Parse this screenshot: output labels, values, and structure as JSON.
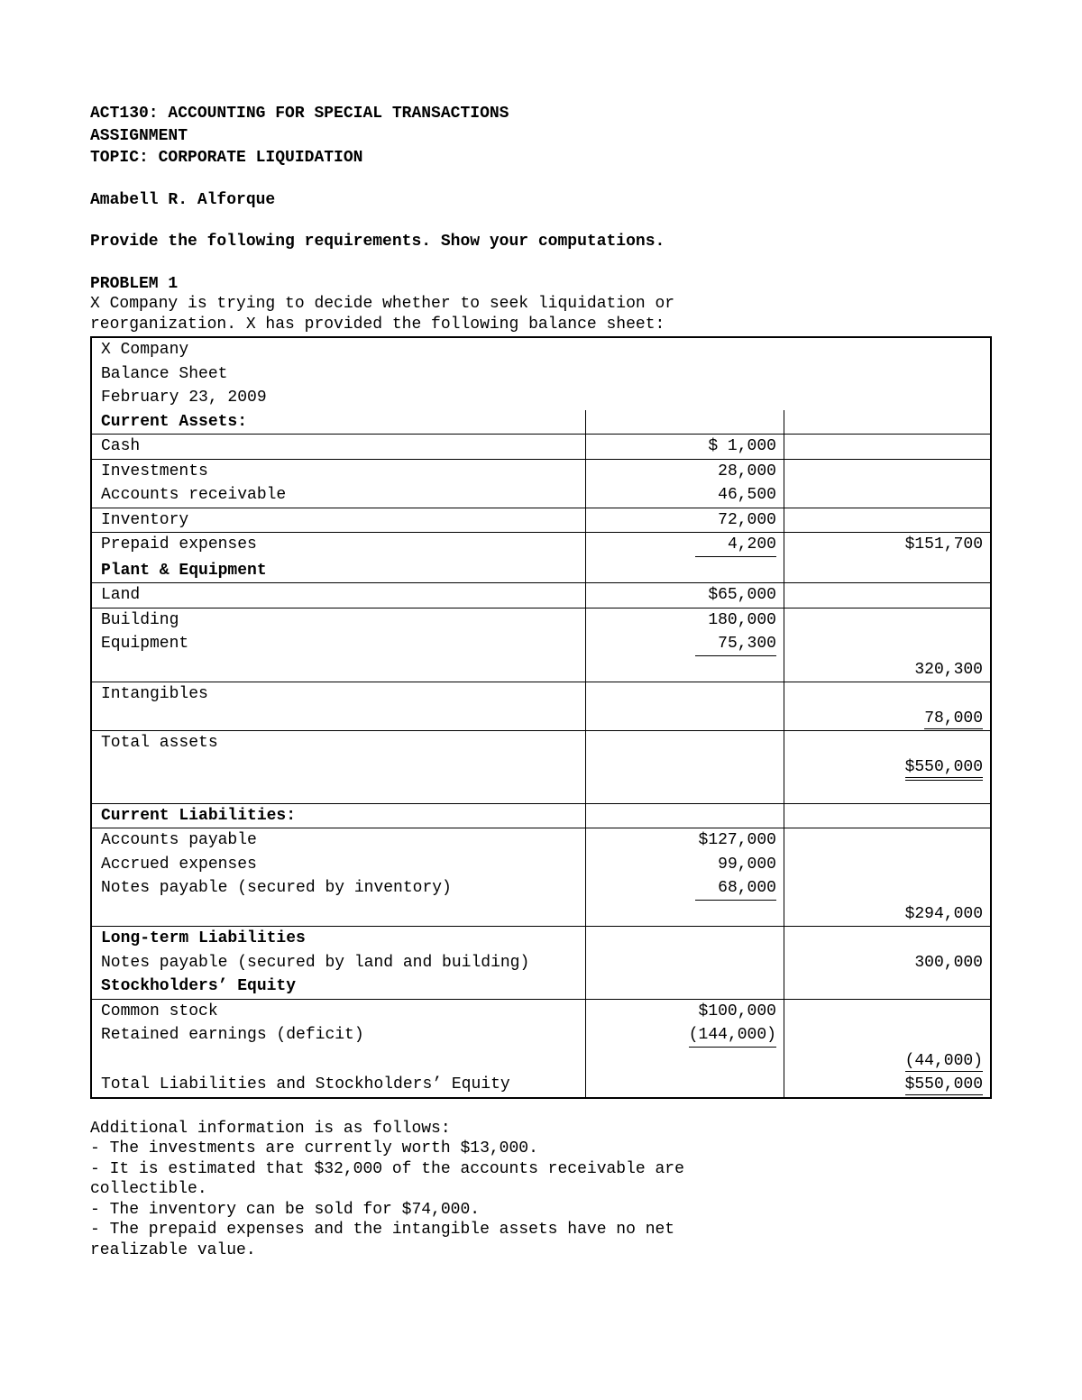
{
  "header": {
    "course": "ACT130: ACCOUNTING FOR SPECIAL TRANSACTIONS",
    "assignment": "ASSIGNMENT",
    "topic": "TOPIC: CORPORATE LIQUIDATION",
    "student": "Amabell R. Alforque",
    "instructions": "Provide the following requirements. Show your computations."
  },
  "problem": {
    "title": "PROBLEM 1",
    "intro1": "X Company is trying to decide whether to seek liquidation or",
    "intro2": "reorganization. X has provided the following balance sheet:"
  },
  "bs": {
    "company": "X Company",
    "title": "Balance Sheet",
    "date": "February 23, 2009",
    "ca_head": "Current Assets:",
    "cash_lbl": "Cash",
    "cash": "$ 1,000",
    "inv_lbl": "Investments",
    "inv": "28,000",
    "ar_lbl": "Accounts receivable",
    "ar": "46,500",
    "inventory_lbl": "Inventory",
    "inventory": "72,000",
    "prepaid_lbl": "Prepaid expenses",
    "prepaid": "4,200",
    "ca_total": "$151,700",
    "pe_head": "Plant & Equipment",
    "land_lbl": "Land",
    "land": "$65,000",
    "bldg_lbl": "Building",
    "bldg": "180,000",
    "equip_lbl": "Equipment",
    "equip": "75,300",
    "pe_total": "320,300",
    "intang_lbl": "Intangibles",
    "intang_total": "78,000",
    "ta_lbl": "Total assets",
    "ta_total": "$550,000",
    "cl_head": "Current Liabilities:",
    "ap_lbl": "Accounts payable",
    "ap": "$127,000",
    "accr_lbl": "Accrued expenses",
    "accr": "99,000",
    "np_inv_lbl": "Notes payable (secured by inventory)",
    "np_inv": "68,000",
    "cl_total": "$294,000",
    "ltl_head": "Long-term Liabilities",
    "np_land_lbl": "Notes payable (secured by land and building)",
    "np_land_total": "300,000",
    "se_head": "Stockholders’ Equity",
    "cs_lbl": "Common stock",
    "cs": "$100,000",
    "re_lbl": "Retained earnings (deficit)",
    "re": "(144,000)",
    "se_total": "(44,000)",
    "tlse_lbl": "Total Liabilities and Stockholders’ Equity",
    "tlse_total": "$550,000"
  },
  "addl": {
    "head": "Additional information is as follows:",
    "l1": "- The investments are currently worth $13,000.",
    "l2a": "- It is estimated that $32,000 of the accounts receivable are",
    "l2b": "collectible.",
    "l3": "- The inventory can be sold for $74,000.",
    "l4a": "- The prepaid expenses and the intangible assets have no net",
    "l4b": "realizable value."
  }
}
